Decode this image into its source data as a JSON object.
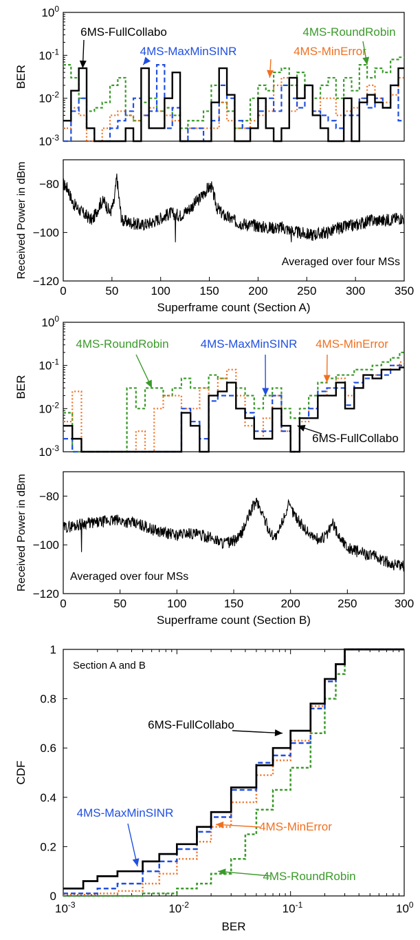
{
  "colors": {
    "6MS-FullCollabo": "#000000",
    "4MS-MaxMinSINR": "#1f4fe0",
    "4MS-MinError": "#f07020",
    "4MS-RoundRobin": "#3a9a2a"
  },
  "chart_data": [
    {
      "id": "ber-a",
      "type": "line",
      "ylabel": "BER",
      "xlim": [
        0,
        350
      ],
      "ylim": [
        0.001,
        1
      ],
      "yscale": "log",
      "yticks": [
        "10^-3",
        "10^-2",
        "10^-1",
        "10^0"
      ],
      "step": true,
      "x_edges": [
        0,
        8,
        16,
        24,
        32,
        40,
        48,
        56,
        64,
        72,
        80,
        88,
        96,
        104,
        112,
        120,
        128,
        136,
        144,
        152,
        160,
        168,
        176,
        184,
        192,
        200,
        208,
        216,
        224,
        232,
        240,
        248,
        256,
        264,
        272,
        280,
        288,
        296,
        304,
        312,
        320,
        328,
        336,
        344,
        350
      ],
      "series": [
        {
          "name": "6MS-FullCollabo",
          "values": [
            0.003,
            0.015,
            0.05,
            0.002,
            0.001,
            0.001,
            0.001,
            0.001,
            0.002,
            0.001,
            0.05,
            0.002,
            0.002,
            0.01,
            0.04,
            0.001,
            0.001,
            0.001,
            0.001,
            0.008,
            0.05,
            0.012,
            0.001,
            0.001,
            0.002,
            0.01,
            0.002,
            0.001,
            0.002,
            0.03,
            0.01,
            0.02,
            0.004,
            0.002,
            0.001,
            0.001,
            0.01,
            0.001,
            0.008,
            0.012,
            0.008,
            0.006,
            0.02,
            0.05
          ]
        },
        {
          "name": "4MS-MaxMinSINR",
          "values": [
            0.001,
            0.005,
            0.01,
            0.002,
            0.001,
            0.001,
            0.002,
            0.003,
            0.005,
            0.01,
            0.004,
            0.005,
            0.06,
            0.002,
            0.006,
            0.001,
            0.002,
            0.002,
            0.001,
            0.003,
            0.02,
            0.01,
            0.003,
            0.002,
            0.002,
            0.005,
            0.01,
            0.005,
            0.02,
            0.01,
            0.006,
            0.02,
            0.005,
            0.004,
            0.003,
            0.002,
            0.004,
            0.004,
            0.01,
            0.006,
            0.01,
            0.006,
            0.02,
            0.003
          ]
        },
        {
          "name": "4MS-MinError",
          "values": [
            0.002,
            0.006,
            0.004,
            0.001,
            0.001,
            0.002,
            0.004,
            0.005,
            0.004,
            0.003,
            0.004,
            0.006,
            0.005,
            0.004,
            0.003,
            0.001,
            0.002,
            0.002,
            0.002,
            0.002,
            0.008,
            0.003,
            0.002,
            0.002,
            0.003,
            0.004,
            0.005,
            0.02,
            0.03,
            0.005,
            0.01,
            0.02,
            0.005,
            0.01,
            0.01,
            0.004,
            0.005,
            0.006,
            0.01,
            0.02,
            0.01,
            0.008,
            0.012,
            0.03
          ]
        },
        {
          "name": "4MS-RoundRobin",
          "values": [
            0.06,
            0.03,
            0.01,
            0.005,
            0.006,
            0.008,
            0.02,
            0.03,
            0.004,
            0.003,
            0.008,
            0.01,
            0.005,
            0.006,
            0.004,
            0.002,
            0.003,
            0.003,
            0.005,
            0.02,
            0.008,
            0.005,
            0.002,
            0.003,
            0.01,
            0.02,
            0.015,
            0.04,
            0.05,
            0.02,
            0.04,
            0.02,
            0.01,
            0.02,
            0.03,
            0.01,
            0.03,
            0.015,
            0.06,
            0.03,
            0.05,
            0.04,
            0.08,
            0.09
          ]
        }
      ],
      "annotations": [
        {
          "text": "6MS-FullCollabo",
          "series": "6MS-FullCollabo",
          "x": 20,
          "y": 0.05
        },
        {
          "text": "4MS-MaxMinSINR",
          "series": "4MS-MaxMinSINR",
          "x": 82,
          "y": 0.06
        },
        {
          "text": "4MS-MinError",
          "series": "4MS-MinError",
          "x": 212,
          "y": 0.03
        },
        {
          "text": "4MS-RoundRobin",
          "series": "4MS-RoundRobin",
          "x": 312,
          "y": 0.06
        }
      ]
    },
    {
      "id": "power-a",
      "type": "line",
      "ylabel": "Received Power in dBm",
      "xlabel": "Superframe count (Section A)",
      "xlim": [
        0,
        350
      ],
      "ylim": [
        -120,
        -70
      ],
      "xticks": [
        0,
        50,
        100,
        150,
        200,
        250,
        300,
        350
      ],
      "yticks": [
        -120,
        -100,
        -80
      ],
      "annotation": "Averaged over four MSs",
      "noise": 1.2,
      "seed": 17,
      "keypoints": [
        [
          0,
          -80
        ],
        [
          5,
          -82
        ],
        [
          10,
          -88
        ],
        [
          20,
          -92
        ],
        [
          30,
          -95
        ],
        [
          38,
          -88
        ],
        [
          42,
          -87
        ],
        [
          48,
          -92
        ],
        [
          52,
          -88
        ],
        [
          55,
          -77
        ],
        [
          57,
          -85
        ],
        [
          60,
          -95
        ],
        [
          70,
          -96
        ],
        [
          80,
          -97
        ],
        [
          90,
          -96
        ],
        [
          100,
          -94
        ],
        [
          110,
          -92
        ],
        [
          120,
          -93
        ],
        [
          130,
          -90
        ],
        [
          140,
          -86
        ],
        [
          148,
          -82
        ],
        [
          152,
          -81
        ],
        [
          158,
          -90
        ],
        [
          165,
          -93
        ],
        [
          180,
          -96
        ],
        [
          195,
          -97
        ],
        [
          210,
          -98
        ],
        [
          225,
          -98
        ],
        [
          240,
          -100
        ],
        [
          255,
          -101
        ],
        [
          270,
          -100
        ],
        [
          285,
          -98
        ],
        [
          300,
          -97
        ],
        [
          315,
          -95
        ],
        [
          330,
          -95
        ],
        [
          345,
          -94
        ],
        [
          350,
          -94
        ]
      ],
      "spikes": [
        [
          115,
          -104
        ],
        [
          234,
          -104
        ]
      ]
    },
    {
      "id": "ber-b",
      "type": "line",
      "ylabel": "BER",
      "xlim": [
        0,
        300
      ],
      "ylim": [
        0.001,
        1
      ],
      "yscale": "log",
      "yticks": [
        "10^-3",
        "10^-2",
        "10^-1",
        "10^0"
      ],
      "step": true,
      "x_edges": [
        0,
        8,
        16,
        24,
        32,
        40,
        48,
        56,
        64,
        72,
        80,
        88,
        96,
        104,
        112,
        120,
        128,
        136,
        144,
        152,
        160,
        168,
        176,
        184,
        192,
        200,
        208,
        216,
        224,
        232,
        240,
        248,
        256,
        264,
        272,
        280,
        288,
        296,
        300
      ],
      "series": [
        {
          "name": "6MS-FullCollabo",
          "values": [
            0.004,
            0.002,
            0.001,
            0.001,
            0.001,
            0.001,
            0.001,
            0.001,
            0.001,
            0.001,
            0.001,
            0.001,
            0.001,
            0.008,
            0.004,
            0.001,
            0.02,
            0.025,
            0.04,
            0.01,
            0.006,
            0.002,
            0.002,
            0.01,
            0.004,
            0.001,
            0.006,
            0.006,
            0.02,
            0.02,
            0.04,
            0.01,
            0.03,
            0.06,
            0.05,
            0.08,
            0.08,
            0.09
          ]
        },
        {
          "name": "4MS-MaxMinSINR",
          "values": [
            0.002,
            0.001,
            0.001,
            0.001,
            0.001,
            0.001,
            0.001,
            0.001,
            0.001,
            0.001,
            0.001,
            0.001,
            0.001,
            0.01,
            0.005,
            0.002,
            0.015,
            0.02,
            0.02,
            0.01,
            0.008,
            0.003,
            0.003,
            0.02,
            0.003,
            0.001,
            0.006,
            0.01,
            0.025,
            0.03,
            0.03,
            0.012,
            0.04,
            0.05,
            0.06,
            0.06,
            0.1,
            0.1
          ]
        },
        {
          "name": "4MS-MinError",
          "values": [
            0.005,
            0.025,
            0.001,
            0.001,
            0.001,
            0.001,
            0.001,
            0.001,
            0.003,
            0.001,
            0.01,
            0.02,
            0.02,
            0.01,
            0.01,
            0.03,
            0.02,
            0.05,
            0.08,
            0.02,
            0.004,
            0.002,
            0.006,
            0.02,
            0.003,
            0.001,
            0.005,
            0.01,
            0.02,
            0.03,
            0.05,
            0.02,
            0.03,
            0.05,
            0.06,
            0.08,
            0.1,
            0.12
          ]
        },
        {
          "name": "4MS-RoundRobin",
          "values": [
            0.008,
            0.001,
            0.001,
            0.001,
            0.001,
            0.001,
            0.001,
            0.03,
            0.01,
            0.03,
            0.03,
            0.02,
            0.03,
            0.05,
            0.03,
            0.03,
            0.06,
            0.05,
            0.04,
            0.03,
            0.02,
            0.01,
            0.02,
            0.03,
            0.01,
            0.006,
            0.01,
            0.02,
            0.04,
            0.05,
            0.06,
            0.06,
            0.08,
            0.08,
            0.1,
            0.12,
            0.15,
            0.2
          ]
        }
      ],
      "annotations": [
        {
          "text": "4MS-RoundRobin",
          "series": "4MS-RoundRobin",
          "x": 78,
          "y": 0.03
        },
        {
          "text": "4MS-MaxMinSINR",
          "series": "4MS-MaxMinSINR",
          "x": 178,
          "y": 0.02
        },
        {
          "text": "4MS-MinError",
          "series": "4MS-MinError",
          "x": 232,
          "y": 0.04
        },
        {
          "text": "6MS-FullCollabo",
          "series": "6MS-FullCollabo",
          "x": 206,
          "y": 0.004
        }
      ]
    },
    {
      "id": "power-b",
      "type": "line",
      "ylabel": "Received Power in dBm",
      "xlabel": "Superframe count (Section B)",
      "xlim": [
        0,
        300
      ],
      "ylim": [
        -120,
        -70
      ],
      "xticks": [
        0,
        50,
        100,
        150,
        200,
        250,
        300
      ],
      "yticks": [
        -120,
        -100,
        -80
      ],
      "annotation": "Averaged over four MSs",
      "noise": 1.1,
      "seed": 29,
      "keypoints": [
        [
          0,
          -93
        ],
        [
          10,
          -92
        ],
        [
          20,
          -91
        ],
        [
          30,
          -91
        ],
        [
          40,
          -90
        ],
        [
          50,
          -90
        ],
        [
          60,
          -91
        ],
        [
          70,
          -92
        ],
        [
          80,
          -94
        ],
        [
          90,
          -95
        ],
        [
          100,
          -96
        ],
        [
          110,
          -95
        ],
        [
          120,
          -96
        ],
        [
          130,
          -97
        ],
        [
          140,
          -99
        ],
        [
          148,
          -99
        ],
        [
          155,
          -97
        ],
        [
          160,
          -92
        ],
        [
          166,
          -85
        ],
        [
          170,
          -82
        ],
        [
          175,
          -87
        ],
        [
          182,
          -95
        ],
        [
          188,
          -97
        ],
        [
          193,
          -90
        ],
        [
          198,
          -84
        ],
        [
          203,
          -87
        ],
        [
          210,
          -92
        ],
        [
          218,
          -96
        ],
        [
          225,
          -98
        ],
        [
          232,
          -96
        ],
        [
          237,
          -91
        ],
        [
          242,
          -96
        ],
        [
          250,
          -101
        ],
        [
          260,
          -103
        ],
        [
          270,
          -104
        ],
        [
          280,
          -106
        ],
        [
          290,
          -108
        ],
        [
          300,
          -109
        ]
      ],
      "spikes": [
        [
          16,
          -103
        ]
      ]
    },
    {
      "id": "cdf",
      "type": "line",
      "ylabel": "CDF",
      "xlabel": "BER",
      "xscale": "log",
      "xlim": [
        0.001,
        1
      ],
      "ylim": [
        0,
        1
      ],
      "xticks": [
        "10^-3",
        "10^-2",
        "10^-1",
        "10^0"
      ],
      "yticks": [
        0,
        0.2,
        0.4,
        0.6,
        0.8,
        1
      ],
      "annotation": "Section A and B",
      "series": [
        {
          "name": "6MS-FullCollabo",
          "x": [
            0.001,
            0.0015,
            0.002,
            0.003,
            0.005,
            0.007,
            0.01,
            0.015,
            0.02,
            0.03,
            0.05,
            0.07,
            0.1,
            0.15,
            0.2,
            0.25,
            0.3,
            1
          ],
          "y": [
            0.03,
            0.06,
            0.08,
            0.1,
            0.14,
            0.17,
            0.21,
            0.28,
            0.34,
            0.44,
            0.53,
            0.6,
            0.67,
            0.78,
            0.88,
            0.94,
            1.0,
            1.0
          ]
        },
        {
          "name": "4MS-MaxMinSINR",
          "x": [
            0.001,
            0.002,
            0.003,
            0.005,
            0.007,
            0.01,
            0.015,
            0.02,
            0.03,
            0.05,
            0.07,
            0.1,
            0.15,
            0.2,
            0.25,
            0.3,
            1
          ],
          "y": [
            0.01,
            0.03,
            0.05,
            0.1,
            0.14,
            0.19,
            0.26,
            0.32,
            0.43,
            0.54,
            0.57,
            0.62,
            0.76,
            0.87,
            0.94,
            1.0,
            1.0
          ]
        },
        {
          "name": "4MS-MinError",
          "x": [
            0.001,
            0.002,
            0.003,
            0.005,
            0.007,
            0.01,
            0.015,
            0.02,
            0.03,
            0.05,
            0.07,
            0.1,
            0.15,
            0.2,
            0.25,
            0.3,
            1
          ],
          "y": [
            0.005,
            0.01,
            0.02,
            0.05,
            0.09,
            0.15,
            0.22,
            0.28,
            0.38,
            0.49,
            0.55,
            0.63,
            0.77,
            0.87,
            0.94,
            1.0,
            1.0
          ]
        },
        {
          "name": "4MS-RoundRobin",
          "x": [
            0.001,
            0.005,
            0.01,
            0.015,
            0.02,
            0.03,
            0.04,
            0.05,
            0.07,
            0.1,
            0.15,
            0.2,
            0.25,
            0.3,
            1
          ],
          "y": [
            0.0,
            0.01,
            0.03,
            0.05,
            0.09,
            0.15,
            0.25,
            0.35,
            0.43,
            0.52,
            0.66,
            0.8,
            0.9,
            1.0,
            1.0
          ]
        }
      ],
      "annotations": [
        {
          "text": "6MS-FullCollabo",
          "series": "6MS-FullCollabo",
          "x": 0.085,
          "y": 0.66
        },
        {
          "text": "4MS-MaxMinSINR",
          "series": "4MS-MaxMinSINR",
          "x": 0.0045,
          "y": 0.12
        },
        {
          "text": "4MS-MinError",
          "series": "4MS-MinError",
          "x": 0.022,
          "y": 0.29
        },
        {
          "text": "4MS-RoundRobin",
          "series": "4MS-RoundRobin",
          "x": 0.023,
          "y": 0.1
        }
      ]
    }
  ]
}
